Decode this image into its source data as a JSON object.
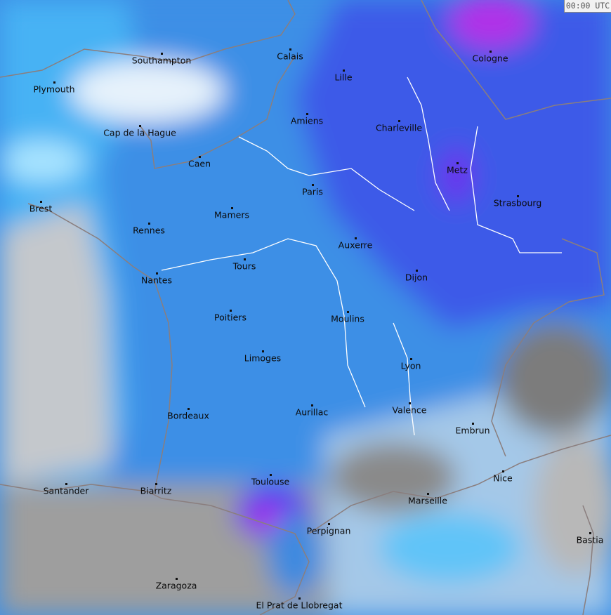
{
  "timestamp": "00:00 UTC",
  "colors": {
    "light": "#e8f4fc",
    "cyan": "#a8e6ff",
    "sky": "#42b0f4",
    "blue": "#3a8ae0",
    "deep": "#3d55ee",
    "violet": "#6a2cf0",
    "magenta": "#c020e8",
    "land_gray": "#a8a8a8",
    "dark_gray": "#7a7a7a",
    "borders": "#8a7a7a",
    "rivers": "#ffffff"
  },
  "cities": [
    "Southampton",
    "Calais",
    "Lille",
    "Cologne",
    "Plymouth",
    "Amiens",
    "Charleville",
    "Cap de la Hague",
    "Caen",
    "Metz",
    "Paris",
    "Strasbourg",
    "Brest",
    "Mamers",
    "Rennes",
    "Auxerre",
    "Tours",
    "Dijon",
    "Nantes",
    "Poitiers",
    "Moulins",
    "Limoges",
    "Lyon",
    "Valence",
    "Aurillac",
    "Bordeaux",
    "Embrun",
    "Nice",
    "Toulouse",
    "Santander",
    "Biarritz",
    "Marseille",
    "Perpignan",
    "Bastia",
    "Zaragoza",
    "El Prat de Llobregat"
  ]
}
